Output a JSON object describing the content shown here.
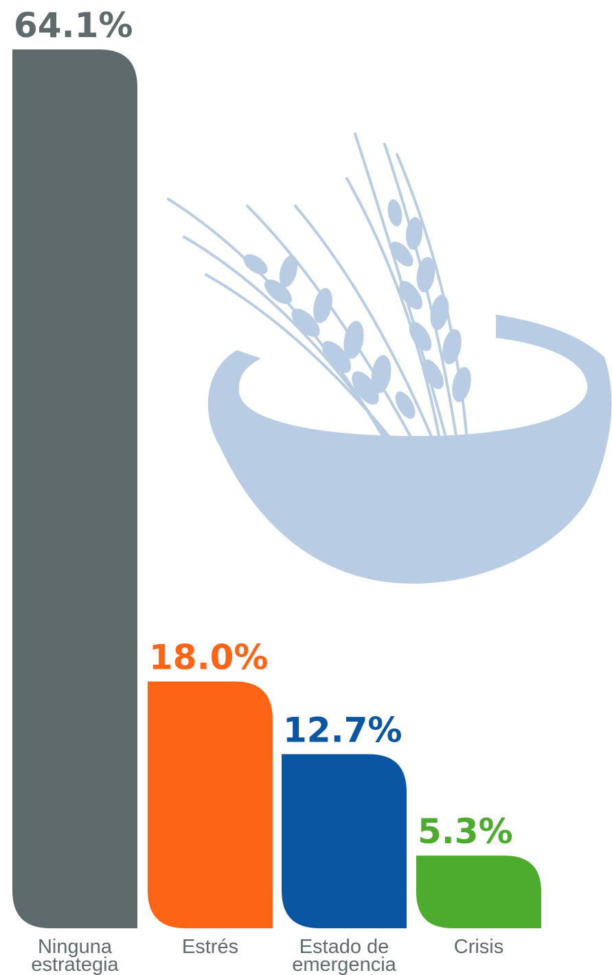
{
  "chart_data": {
    "type": "bar",
    "categories": [
      [
        "Ninguna",
        "estrategia"
      ],
      [
        "Estrés"
      ],
      [
        "Estado de",
        "emergencia"
      ],
      [
        "Crisis"
      ]
    ],
    "values": [
      64.1,
      18.0,
      12.7,
      5.3
    ],
    "value_labels": [
      "64.1%",
      "18.0%",
      "12.7%",
      "5.3%"
    ],
    "colors": [
      "#5f6a6c",
      "#fe6416",
      "#0b56a3",
      "#4dab2e"
    ],
    "ylim": [
      0,
      64.1
    ],
    "grid": false,
    "legend": "none",
    "decoration": {
      "icon": "wheat-bowl-icon",
      "color": "#b8cde3"
    }
  }
}
